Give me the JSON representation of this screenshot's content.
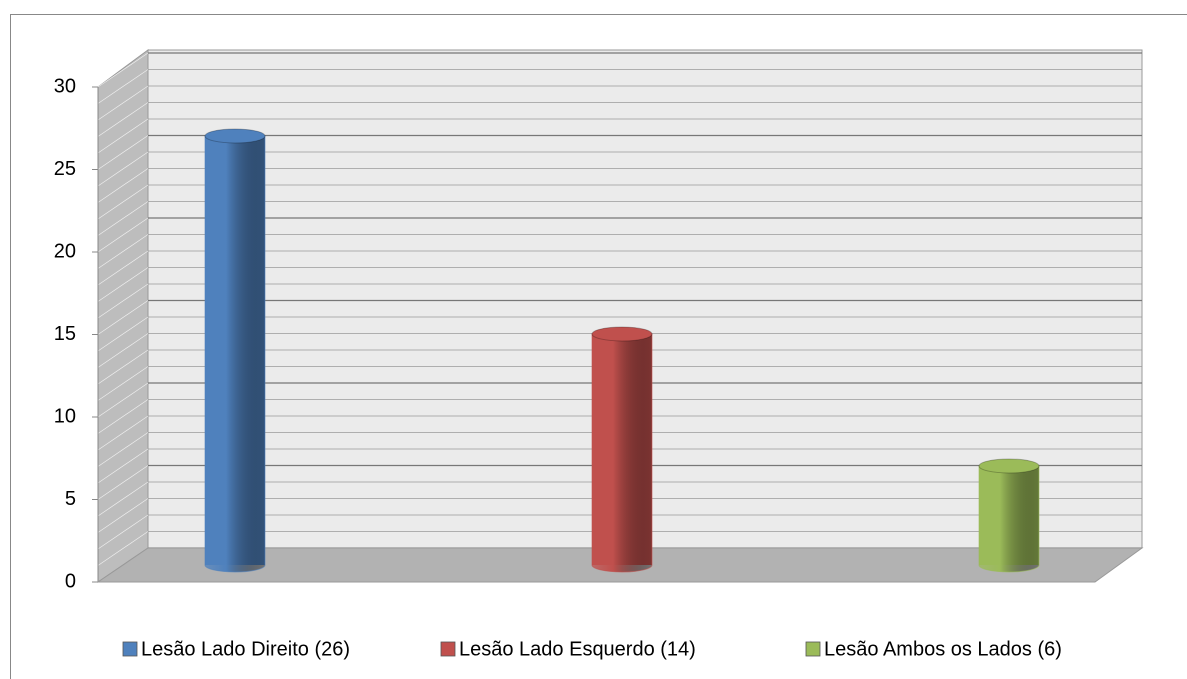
{
  "chart_data": {
    "type": "bar3d",
    "series": [
      {
        "name": "Lesão Lado Direito (26)",
        "color": "#4f81bd",
        "values": [
          26
        ]
      },
      {
        "name": "Lesão Lado Esquerdo (14)",
        "color": "#c0504d",
        "values": [
          14
        ]
      },
      {
        "name": "Lesão Ambos os Lados (6)",
        "color": "#9bbb59",
        "values": [
          6
        ]
      }
    ],
    "ylim": [
      0,
      30
    ],
    "yticks": [
      0,
      5,
      10,
      15,
      20,
      25,
      30
    ],
    "grid": true,
    "legend": "bottom"
  }
}
